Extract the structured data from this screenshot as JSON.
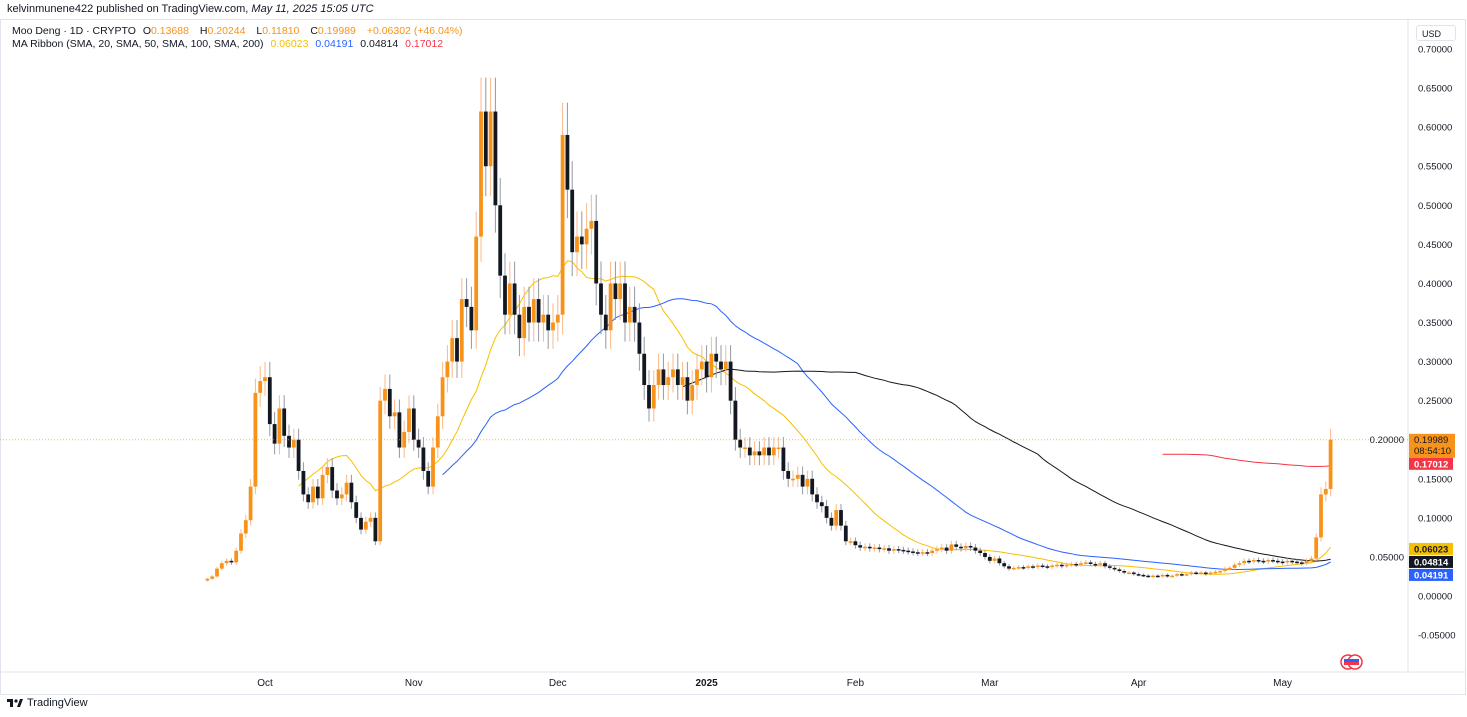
{
  "published": {
    "user": "kelvinmunene422",
    "text": "published on TradingView.com,",
    "date": "May 11, 2025 15:05 UTC"
  },
  "legend": {
    "symbol": "Moo Deng · 1D · CRYPTO",
    "o_label": "O",
    "o": "0.13688",
    "h_label": "H",
    "h": "0.20244",
    "l_label": "L",
    "l": "0.11810",
    "c_label": "C",
    "c": "0.19989",
    "change": "+0.06302 (+46.04%)",
    "indicator": "MA Ribbon (SMA, 20, SMA, 50, SMA, 100, SMA, 200)",
    "ma_values": [
      "0.06023",
      "0.04191",
      "0.04814",
      "0.17012"
    ]
  },
  "currency": "USD",
  "brand": "TradingView",
  "colors": {
    "up": "#f7931a",
    "down": "#131722",
    "sma20": "#f5c000",
    "sma50": "#2962ff",
    "sma100": "#131722",
    "sma200": "#f23645"
  },
  "chart_data": {
    "type": "candlestick",
    "title": "Moo Deng · 1D · CRYPTO",
    "ylim": [
      -0.07,
      0.72
    ],
    "y_ticks": [
      "0.70000",
      "0.65000",
      "0.60000",
      "0.55000",
      "0.50000",
      "0.45000",
      "0.40000",
      "0.35000",
      "0.30000",
      "0.25000",
      "0.20000",
      "0.15000",
      "0.10000",
      "0.05000",
      "0.00000",
      "-0.05000"
    ],
    "x_ticks": [
      [
        "2024-10-01",
        "Oct"
      ],
      [
        "2024-11-01",
        "Nov"
      ],
      [
        "2024-12-01",
        "Dec"
      ],
      [
        "2025-01-01",
        "2025"
      ],
      [
        "2025-02-01",
        "Feb"
      ],
      [
        "2025-03-01",
        "Mar"
      ],
      [
        "2025-04-01",
        "Apr"
      ],
      [
        "2025-05-01",
        "May"
      ]
    ],
    "grid": false,
    "last_price": {
      "value": 0.19989,
      "label": "0.19989",
      "countdown": "08:54:10"
    },
    "ma_labels": [
      {
        "value": 0.17012,
        "label": "0.17012",
        "color": "#f23645"
      },
      {
        "value": 0.06023,
        "label": "0.06023",
        "color": "#f5c000"
      },
      {
        "value": 0.04814,
        "label": "0.04814",
        "color": "#131722"
      },
      {
        "value": 0.04191,
        "label": "0.04191",
        "color": "#2962ff"
      }
    ],
    "ma_periods": [
      20,
      50,
      100,
      200
    ],
    "closes": {
      "2024-09": [
        [
          19,
          0.022
        ],
        [
          20,
          0.025
        ],
        [
          21,
          0.035
        ],
        [
          22,
          0.042
        ],
        [
          23,
          0.045
        ],
        [
          24,
          0.043
        ],
        [
          25,
          0.058
        ],
        [
          26,
          0.08
        ],
        [
          27,
          0.097
        ],
        [
          28,
          0.14
        ],
        [
          29,
          0.26
        ],
        [
          30,
          0.275
        ]
      ],
      "2024-10": [
        0.28,
        0.22,
        0.195,
        0.24,
        0.205,
        0.19,
        0.2,
        0.16,
        0.13,
        0.12,
        0.14,
        0.125,
        0.155,
        0.165,
        0.135,
        0.125,
        0.13,
        0.145,
        0.12,
        0.1,
        0.085,
        0.095,
        0.1,
        0.07,
        0.25,
        0.265,
        0.23,
        0.235,
        0.19,
        0.21,
        0.24
      ],
      "2024-11": [
        0.2,
        0.19,
        0.16,
        0.14,
        0.19,
        0.23,
        0.28,
        0.3,
        0.33,
        0.3,
        0.38,
        0.37,
        0.34,
        0.46,
        0.62,
        0.55,
        0.62,
        0.5,
        0.41,
        0.36,
        0.4,
        0.36,
        0.33,
        0.37,
        0.35,
        0.38,
        0.35,
        0.36,
        0.34,
        0.35
      ],
      "2024-12": [
        0.36,
        0.59,
        0.52,
        0.44,
        0.46,
        0.45,
        0.47,
        0.48,
        0.4,
        0.36,
        0.34,
        0.4,
        0.38,
        0.4,
        0.35,
        0.37,
        0.35,
        0.31,
        0.27,
        0.24,
        0.27,
        0.29,
        0.27,
        0.28,
        0.29,
        0.27,
        0.28,
        0.25,
        0.27,
        0.29,
        0.3
      ],
      "2025-01": [
        0.28,
        0.31,
        0.3,
        0.29,
        0.3,
        0.25,
        0.2,
        0.19,
        0.19,
        0.18,
        0.185,
        0.18,
        0.19,
        0.18,
        0.19,
        0.19,
        0.16,
        0.15,
        0.15,
        0.155,
        0.14,
        0.15,
        0.13,
        0.12,
        0.115,
        0.1,
        0.09,
        0.11,
        0.09,
        0.07,
        0.07
      ],
      "2025-02": [
        0.065,
        0.062,
        0.063,
        0.061,
        0.062,
        0.06,
        0.061,
        0.058,
        0.06,
        0.059,
        0.058,
        0.057,
        0.056,
        0.055,
        0.056,
        0.055,
        0.058,
        0.06,
        0.062,
        0.058,
        0.066,
        0.063,
        0.061,
        0.064,
        0.062,
        0.058,
        0.055,
        0.05
      ],
      "2025-03": [
        0.045,
        0.048,
        0.042,
        0.038,
        0.035,
        0.036,
        0.037,
        0.036,
        0.038,
        0.037,
        0.039,
        0.038,
        0.037,
        0.039,
        0.04,
        0.038,
        0.04,
        0.041,
        0.04,
        0.042,
        0.043,
        0.041,
        0.04,
        0.042,
        0.038,
        0.036,
        0.034,
        0.032,
        0.03,
        0.03,
        0.028
      ],
      "2025-04": [
        0.027,
        0.026,
        0.025,
        0.026,
        0.025,
        0.027,
        0.025,
        0.026,
        0.028,
        0.027,
        0.028,
        0.03,
        0.029,
        0.03,
        0.028,
        0.03,
        0.031,
        0.032,
        0.035,
        0.036,
        0.04,
        0.042,
        0.045,
        0.044,
        0.046,
        0.045,
        0.044,
        0.046,
        0.045,
        0.044
      ],
      "2025-05": [
        0.043,
        0.045,
        0.044,
        0.043,
        0.042,
        0.045,
        0.048,
        0.075,
        0.13,
        0.137,
        0.19989
      ]
    }
  }
}
